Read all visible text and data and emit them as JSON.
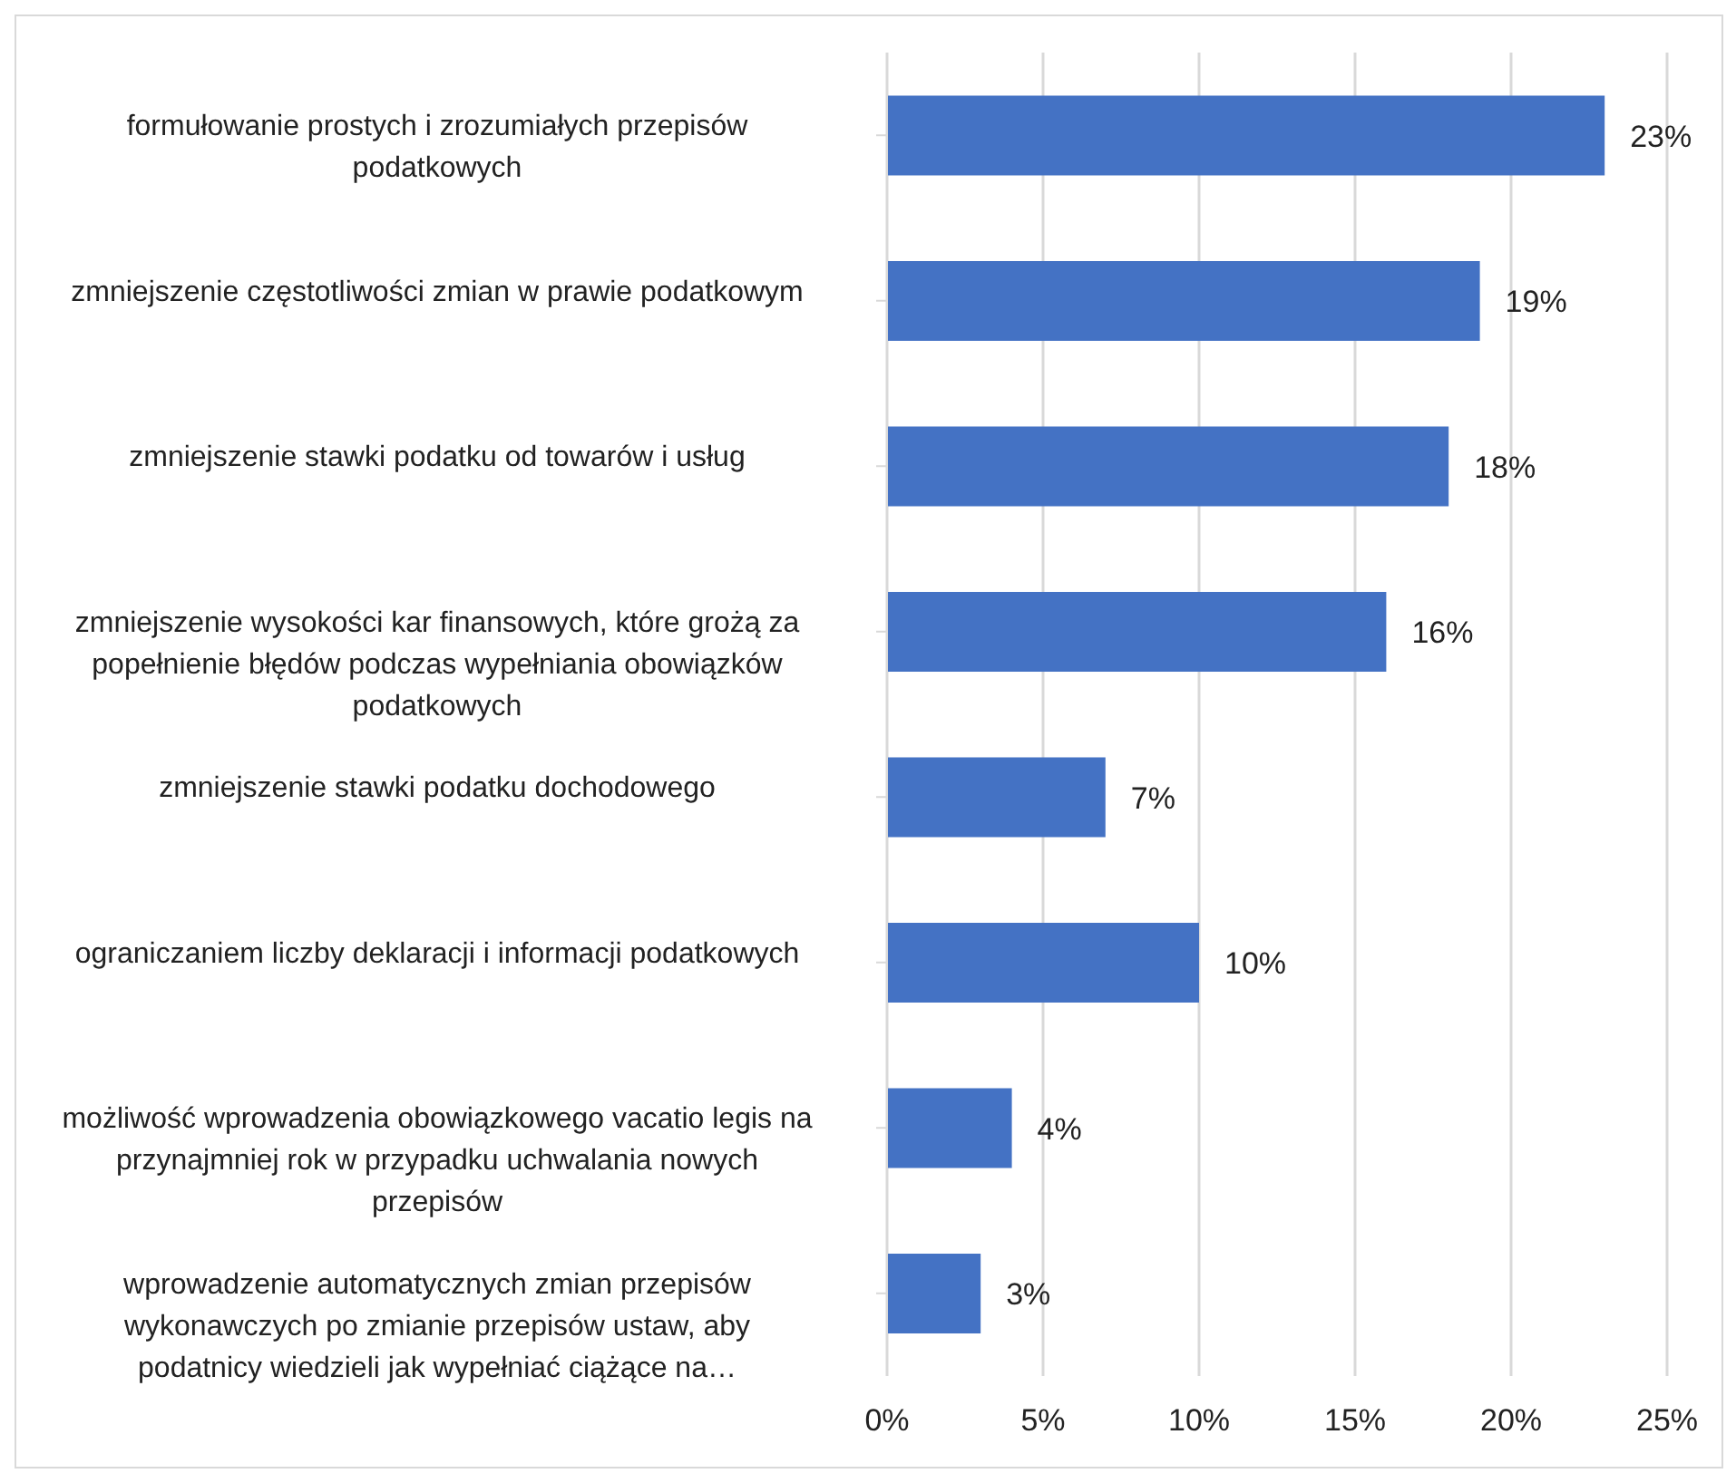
{
  "chart_data": {
    "type": "bar",
    "orientation": "horizontal",
    "categories": [
      "formułowanie prostych i zrozumiałych przepisów podatkowych",
      "zmniejszenie częstotliwości zmian w prawie podatkowym",
      "zmniejszenie stawki podatku od towarów i usług",
      "zmniejszenie wysokości kar finansowych, które grożą za popełnienie błędów podczas wypełniania obowiązków podatkowych",
      "zmniejszenie stawki podatku dochodowego",
      "ograniczaniem liczby deklaracji i informacji podatkowych",
      "możliwość wprowadzenia obowiązkowego vacatio legis na przynajmniej rok w przypadku uchwalania nowych przepisów",
      "wprowadzenie automatycznych zmian przepisów wykonawczych po zmianie przepisów ustaw, aby podatnicy wiedzieli jak wypełniać ciążące na…"
    ],
    "values": [
      23,
      19,
      18,
      16,
      7,
      10,
      4,
      3
    ],
    "value_labels": [
      "23%",
      "19%",
      "18%",
      "16%",
      "7%",
      "10%",
      "4%",
      "3%"
    ],
    "color": "#4472c4",
    "xlim": [
      0,
      25
    ],
    "xticks": [
      {
        "value": 0,
        "label": "0%"
      },
      {
        "value": 5,
        "label": "5%"
      },
      {
        "value": 10,
        "label": "10%"
      },
      {
        "value": 15,
        "label": "15%"
      },
      {
        "value": 20,
        "label": "20%"
      },
      {
        "value": 25,
        "label": "25%"
      }
    ],
    "grid": "x"
  }
}
